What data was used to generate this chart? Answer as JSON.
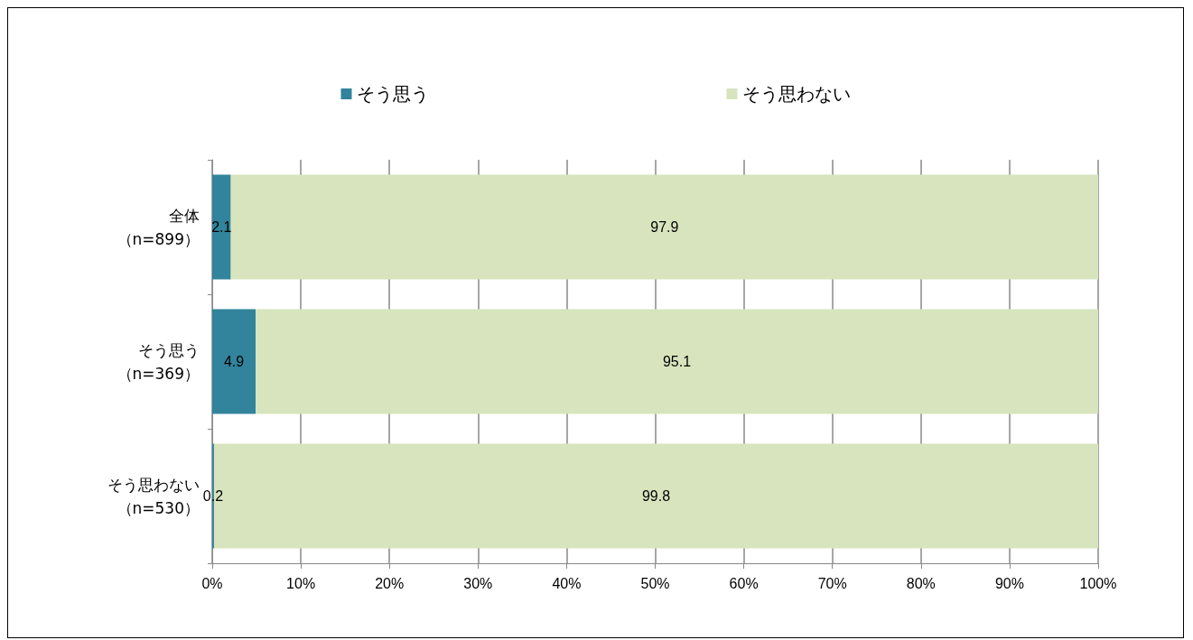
{
  "chart_data": {
    "type": "bar",
    "orientation": "horizontal",
    "stacked": true,
    "categories": [
      "全体（n=899）",
      "そう思う（n=369）",
      "そう思わない（n=530）"
    ],
    "series": [
      {
        "name": "そう思う",
        "color": "#31849b",
        "values": [
          2.1,
          4.9,
          0.2
        ]
      },
      {
        "name": "そう思わない",
        "color": "#d7e4bd",
        "values": [
          97.9,
          95.1,
          99.8
        ]
      }
    ],
    "xlim": [
      0,
      100
    ],
    "xticks": [
      {
        "value": 0,
        "label": "0%"
      },
      {
        "value": 10,
        "label": "10%"
      },
      {
        "value": 20,
        "label": "20%"
      },
      {
        "value": 30,
        "label": "30%"
      },
      {
        "value": 40,
        "label": "40%"
      },
      {
        "value": 50,
        "label": "50%"
      },
      {
        "value": 60,
        "label": "60%"
      },
      {
        "value": 70,
        "label": "70%"
      },
      {
        "value": 80,
        "label": "80%"
      },
      {
        "value": 90,
        "label": "90%"
      },
      {
        "value": 100,
        "label": "100%"
      }
    ],
    "grid": "x",
    "legend": "top",
    "data_labels": true
  }
}
